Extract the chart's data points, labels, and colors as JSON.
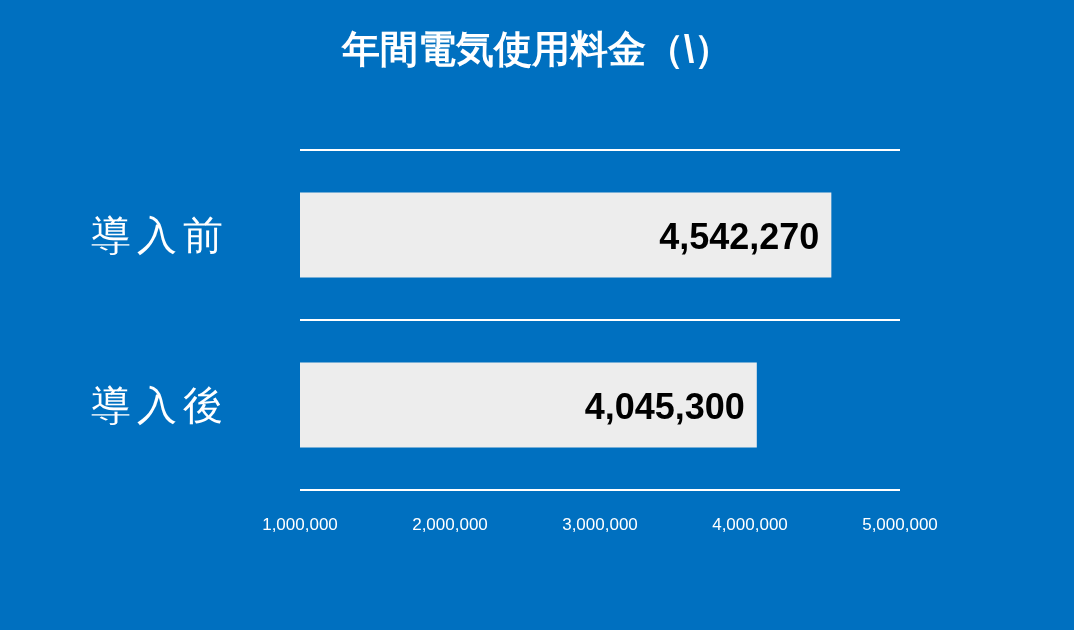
{
  "chart_data": {
    "type": "bar",
    "orientation": "horizontal",
    "title": "年間電気使用料金（\\）",
    "categories": [
      "導入前",
      "導入後"
    ],
    "values": [
      4542270,
      4045300
    ],
    "value_labels": [
      "4,542,270",
      "4,045,300"
    ],
    "color": "#ededed",
    "xlim": [
      1000000,
      5000000
    ],
    "xticks": [
      {
        "value": 1000000,
        "label": "1,000,000"
      },
      {
        "value": 2000000,
        "label": "2,000,000"
      },
      {
        "value": 3000000,
        "label": "3,000,000"
      },
      {
        "value": 4000000,
        "label": "4,000,000"
      },
      {
        "value": 5000000,
        "label": "5,000,000"
      }
    ],
    "grid": "y"
  }
}
